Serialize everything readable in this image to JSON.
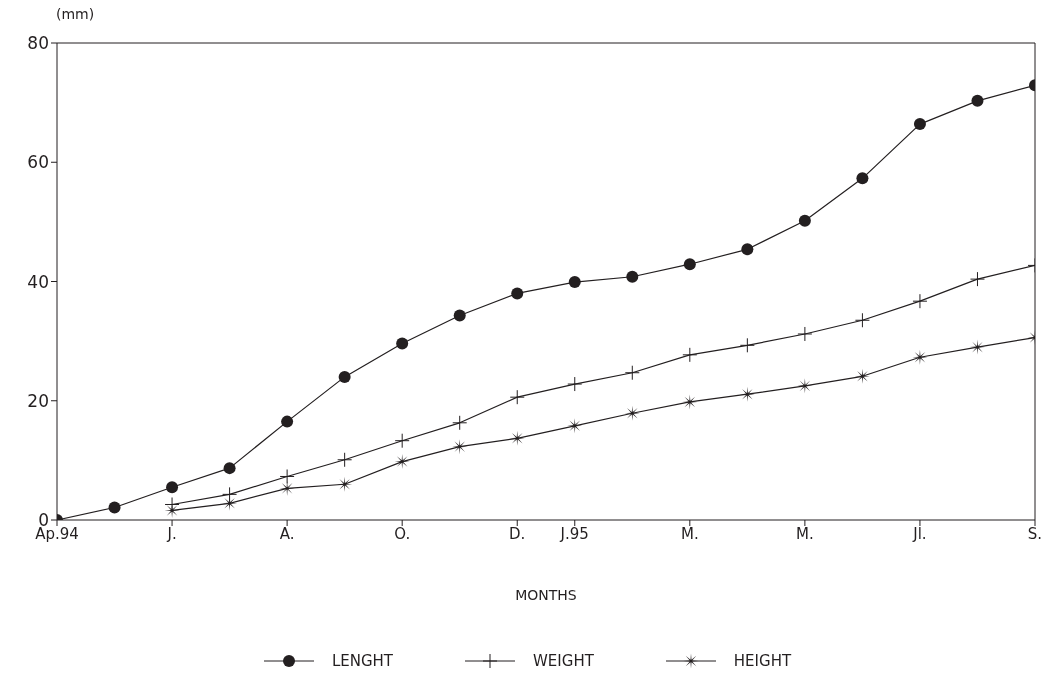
{
  "chart_data": {
    "type": "line",
    "xlabel": "MONTHS",
    "ylabel": "(mm)",
    "categories": [
      "Ap.94",
      null,
      "J.",
      null,
      "A.",
      null,
      "O.",
      null,
      "D.",
      "J.95",
      null,
      "M.",
      null,
      "M.",
      null,
      "Jl.",
      null,
      "S."
    ],
    "ylim": [
      0,
      80
    ],
    "yticks": [
      0,
      20,
      40,
      60,
      80
    ],
    "grid": false,
    "legend": "bottom",
    "line_style": "solid",
    "series": [
      {
        "name": "LENGHT",
        "color": "#231f20",
        "marker": "circle",
        "values": [
          0,
          2.1,
          5.5,
          8.7,
          16.5,
          24.0,
          29.6,
          34.3,
          38.0,
          39.9,
          40.8,
          42.9,
          45.4,
          50.2,
          57.3,
          66.4,
          70.3,
          72.9
        ]
      },
      {
        "name": "WEIGHT",
        "color": "#231f20",
        "marker": "cross",
        "values": [
          null,
          null,
          2.6,
          4.3,
          7.3,
          10.1,
          13.3,
          16.3,
          20.6,
          22.8,
          24.7,
          27.7,
          29.3,
          31.2,
          33.5,
          36.7,
          40.4,
          42.7
        ]
      },
      {
        "name": "HEIGHT",
        "color": "#231f20",
        "marker": "star",
        "values": [
          null,
          null,
          1.6,
          2.8,
          5.3,
          6.0,
          9.8,
          12.3,
          13.7,
          15.8,
          17.9,
          19.8,
          21.1,
          22.5,
          24.1,
          27.3,
          29.0,
          30.6
        ]
      }
    ]
  }
}
